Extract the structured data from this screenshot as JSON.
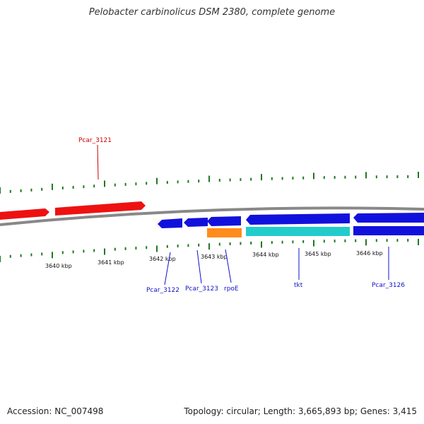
{
  "header": {
    "title": "Pelobacter carbinolicus DSM 2380, complete genome"
  },
  "footer": {
    "accession": "Accession: NC_007498",
    "summary": "Topology: circular; Length: 3,665,893 bp; Genes: 3,415"
  },
  "scale": {
    "labels": [
      "3640 kbp",
      "3641 kbp",
      "3642 kbp",
      "3643 kbp",
      "3644 kbp",
      "3645 kbp",
      "3646 kbp"
    ]
  },
  "genes": [
    {
      "name": "Pcar_3121",
      "strand": "+",
      "color": "#ee1111"
    },
    {
      "name": "Pcar_3122",
      "strand": "-",
      "color": "#1111dd"
    },
    {
      "name": "Pcar_3123",
      "strand": "-",
      "color": "#1111dd"
    },
    {
      "name": "rpoE",
      "strand": "-",
      "color": "#1111dd"
    },
    {
      "name": "tkt",
      "strand": "-",
      "color": "#1111dd"
    },
    {
      "name": "Pcar_3126",
      "strand": "-",
      "color": "#1111dd"
    }
  ],
  "colors": {
    "forward_gene": "#ee1111",
    "reverse_gene": "#1111dd",
    "backbone": "#888888",
    "tick": "#227722",
    "rna_orange": "#ff8c1a",
    "rna_cyan": "#22cccc"
  }
}
